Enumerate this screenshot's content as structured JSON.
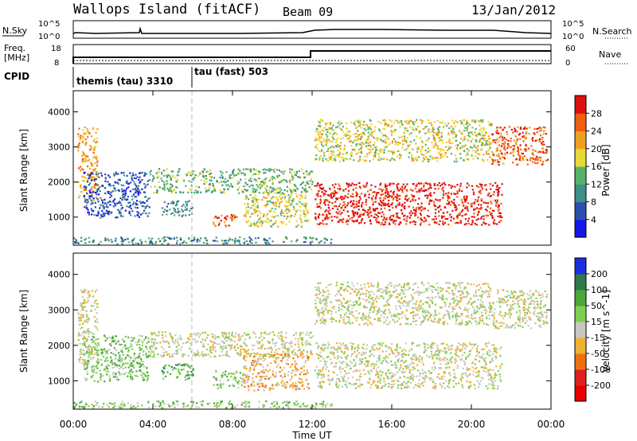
{
  "header": {
    "station": "Wallops Island (fitACF)",
    "beam": "Beam 09",
    "date": "13/Jan/2012"
  },
  "top_panels": {
    "nsky_label": "N.Sky",
    "nsearch_label": "N.Search",
    "freq_label_line1": "Freq.",
    "freq_label_line2": "[MHz]",
    "nave_label": "Nave",
    "cpid_label": "CPID",
    "nsky_ticks": [
      "10^5",
      "10^0"
    ],
    "nsearch_ticks": [
      "10^5",
      "10^0"
    ],
    "freq_ticks": [
      "18",
      "8"
    ],
    "nave_ticks": [
      "60",
      "0"
    ],
    "cpid_segments": [
      {
        "name": "themis (tau) 3310",
        "start_hour": 0
      },
      {
        "name": "tau (fast) 503",
        "start_hour": 6
      }
    ]
  },
  "chart_data": [
    {
      "type": "heatmap",
      "panel": "power",
      "ylabel": "Slant Range [km]",
      "y_ticks": [
        "1000",
        "2000",
        "3000",
        "4000"
      ],
      "ylim": [
        200,
        4600
      ],
      "xlim": [
        0,
        24
      ],
      "colorbar": {
        "label": "Power [dB]",
        "ticks": [
          "4",
          "8",
          "12",
          "16",
          "20",
          "24",
          "28"
        ],
        "colors": [
          "#1515e8",
          "#2a4fb0",
          "#3f8f86",
          "#55b26a",
          "#e8d838",
          "#f0a020",
          "#f06010",
          "#e01010"
        ]
      },
      "regions": [
        {
          "t0": 0.2,
          "t1": 1.2,
          "r0": 1500,
          "r1": 3600,
          "level": 5
        },
        {
          "t0": 0.5,
          "t1": 3.8,
          "r0": 1000,
          "r1": 2300,
          "level": 1
        },
        {
          "t0": 3.8,
          "t1": 12.0,
          "r0": 1700,
          "r1": 2400,
          "level": 3
        },
        {
          "t0": 4.4,
          "t1": 6.0,
          "r0": 1050,
          "r1": 1500,
          "level": 2
        },
        {
          "t0": 7.0,
          "t1": 8.2,
          "r0": 750,
          "r1": 1100,
          "level": 6
        },
        {
          "t0": 8.5,
          "t1": 11.8,
          "r0": 750,
          "r1": 1700,
          "level": 4
        },
        {
          "t0": 12.1,
          "t1": 21.0,
          "r0": 2600,
          "r1": 3800,
          "level": 4
        },
        {
          "t0": 12.1,
          "t1": 21.5,
          "r0": 800,
          "r1": 2000,
          "level": 7
        },
        {
          "t0": 21.0,
          "t1": 23.8,
          "r0": 2500,
          "r1": 3600,
          "level": 6
        },
        {
          "t0": 0.0,
          "t1": 13.0,
          "r0": 250,
          "r1": 450,
          "level": 2
        }
      ]
    },
    {
      "type": "heatmap",
      "panel": "velocity",
      "ylabel": "Slant Range [km]",
      "y_ticks": [
        "1000",
        "2000",
        "3000",
        "4000"
      ],
      "ylim": [
        200,
        4600
      ],
      "xlim": [
        0,
        24
      ],
      "x_ticks": [
        "00:00",
        "04:00",
        "08:00",
        "12:00",
        "16:00",
        "20:00",
        "00:00"
      ],
      "xlabel": "Time UT",
      "colorbar": {
        "label": "Velocity [m s^-1]",
        "ticks": [
          "200",
          "100",
          "50",
          "15",
          "-15",
          "-50",
          "-100",
          "-200"
        ],
        "colors": [
          "#1a2ee0",
          "#2f7a4a",
          "#4aa83a",
          "#80d050",
          "#c8c8c0",
          "#f0b030",
          "#f07010",
          "#e02020",
          "#e80000"
        ]
      },
      "regions": [
        {
          "t0": 0.2,
          "t1": 1.2,
          "r0": 1500,
          "r1": 3600,
          "level": 4
        },
        {
          "t0": 0.5,
          "t1": 3.8,
          "r0": 1000,
          "r1": 2300,
          "level": 3
        },
        {
          "t0": 3.8,
          "t1": 12.0,
          "r0": 1700,
          "r1": 2400,
          "level": 4
        },
        {
          "t0": 4.4,
          "t1": 6.0,
          "r0": 1050,
          "r1": 1500,
          "level": 2
        },
        {
          "t0": 7.0,
          "t1": 8.5,
          "r0": 800,
          "r1": 1300,
          "level": 3
        },
        {
          "t0": 8.5,
          "t1": 11.8,
          "r0": 750,
          "r1": 1800,
          "level": 5
        },
        {
          "t0": 12.1,
          "t1": 21.5,
          "r0": 800,
          "r1": 2100,
          "level": 4
        },
        {
          "t0": 12.1,
          "t1": 21.0,
          "r0": 2600,
          "r1": 3800,
          "level": 4
        },
        {
          "t0": 21.0,
          "t1": 23.8,
          "r0": 2500,
          "r1": 3600,
          "level": 4
        },
        {
          "t0": 0.0,
          "t1": 13.0,
          "r0": 250,
          "r1": 450,
          "level": 3
        }
      ]
    }
  ]
}
